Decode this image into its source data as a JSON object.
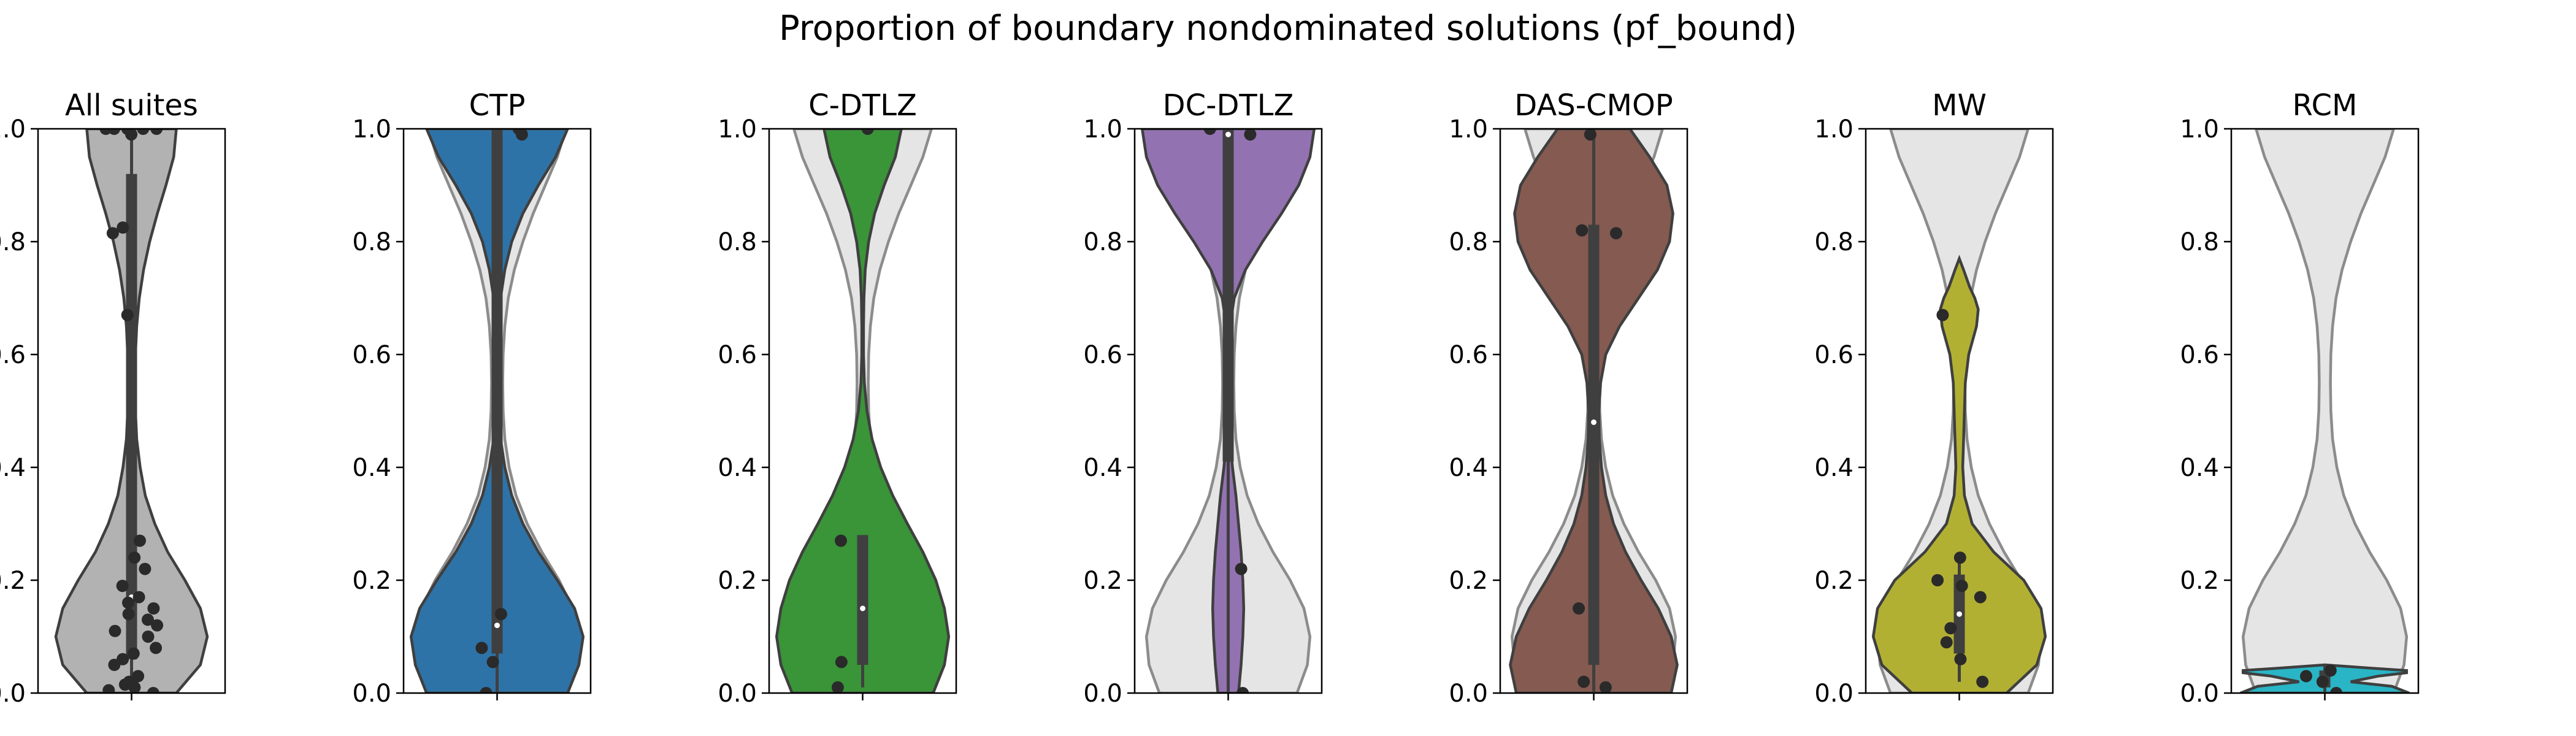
{
  "figure": {
    "title": "Proportion of boundary nondominated solutions (pf_bound)",
    "ylim": [
      0,
      1
    ],
    "yticks": [
      "0.0",
      "0.2",
      "0.4",
      "0.6",
      "0.8",
      "1.0"
    ],
    "background_violin_color": "#e5e5e5",
    "background_violin_edge": "#8c8c8c"
  },
  "chart_data": [
    {
      "type": "violin",
      "title": "All suites",
      "color": "#b2b2b2",
      "ylim": [
        0,
        1
      ],
      "density": [
        [
          0.0,
          0.52
        ],
        [
          0.05,
          0.8
        ],
        [
          0.1,
          0.88
        ],
        [
          0.15,
          0.8
        ],
        [
          0.2,
          0.62
        ],
        [
          0.25,
          0.42
        ],
        [
          0.3,
          0.27
        ],
        [
          0.35,
          0.16
        ],
        [
          0.4,
          0.1
        ],
        [
          0.45,
          0.06
        ],
        [
          0.5,
          0.045
        ],
        [
          0.55,
          0.04
        ],
        [
          0.6,
          0.045
        ],
        [
          0.65,
          0.06
        ],
        [
          0.7,
          0.09
        ],
        [
          0.75,
          0.14
        ],
        [
          0.8,
          0.21
        ],
        [
          0.85,
          0.3
        ],
        [
          0.9,
          0.4
        ],
        [
          0.95,
          0.49
        ],
        [
          1.0,
          0.52
        ]
      ],
      "box": {
        "q1": 0.06,
        "median": 0.17,
        "q3": 0.92,
        "whisker_low": 0.0,
        "whisker_high": 1.0
      },
      "points": [
        0.0,
        0.005,
        0.01,
        0.015,
        0.02,
        0.03,
        0.05,
        0.06,
        0.07,
        0.08,
        0.1,
        0.11,
        0.12,
        0.13,
        0.14,
        0.15,
        0.16,
        0.17,
        0.19,
        0.22,
        0.24,
        0.27,
        0.67,
        0.815,
        0.825,
        0.99,
        1.0,
        1.0,
        1.0,
        1.0,
        1.0
      ],
      "show_background": false
    },
    {
      "type": "violin",
      "title": "CTP",
      "color": "#2e73a7",
      "ylim": [
        0,
        1
      ],
      "density": [
        [
          0.0,
          0.82
        ],
        [
          0.05,
          0.95
        ],
        [
          0.1,
          1.0
        ],
        [
          0.15,
          0.9
        ],
        [
          0.2,
          0.7
        ],
        [
          0.25,
          0.48
        ],
        [
          0.3,
          0.3
        ],
        [
          0.35,
          0.17
        ],
        [
          0.4,
          0.09
        ],
        [
          0.45,
          0.04
        ],
        [
          0.5,
          0.02
        ],
        [
          0.55,
          0.015
        ],
        [
          0.6,
          0.015
        ],
        [
          0.65,
          0.02
        ],
        [
          0.7,
          0.04
        ],
        [
          0.75,
          0.09
        ],
        [
          0.8,
          0.17
        ],
        [
          0.85,
          0.3
        ],
        [
          0.9,
          0.48
        ],
        [
          0.95,
          0.68
        ],
        [
          1.0,
          0.82
        ]
      ],
      "box": {
        "q1": 0.07,
        "median": 0.12,
        "q3": 1.0,
        "whisker_low": 0.0,
        "whisker_high": 1.0
      },
      "points": [
        0.0,
        0.055,
        0.08,
        0.14,
        0.99,
        1.0
      ],
      "show_background": true
    },
    {
      "type": "violin",
      "title": "C-DTLZ",
      "color": "#3a9438",
      "ylim": [
        0,
        1
      ],
      "density": [
        [
          0.0,
          0.82
        ],
        [
          0.05,
          0.95
        ],
        [
          0.1,
          1.0
        ],
        [
          0.15,
          0.95
        ],
        [
          0.2,
          0.85
        ],
        [
          0.25,
          0.7
        ],
        [
          0.3,
          0.52
        ],
        [
          0.35,
          0.35
        ],
        [
          0.4,
          0.21
        ],
        [
          0.45,
          0.11
        ],
        [
          0.5,
          0.05
        ],
        [
          0.55,
          0.02
        ],
        [
          0.6,
          0.01
        ],
        [
          0.65,
          0.01
        ],
        [
          0.7,
          0.015
        ],
        [
          0.75,
          0.03
        ],
        [
          0.8,
          0.07
        ],
        [
          0.85,
          0.14
        ],
        [
          0.9,
          0.25
        ],
        [
          0.95,
          0.38
        ],
        [
          1.0,
          0.45
        ]
      ],
      "box": {
        "q1": 0.05,
        "median": 0.15,
        "q3": 0.28,
        "whisker_low": 0.01,
        "whisker_high": 0.28
      },
      "points": [
        0.01,
        0.055,
        0.27,
        1.0
      ],
      "show_background": true
    },
    {
      "type": "violin",
      "title": "DC-DTLZ",
      "color": "#9372b1",
      "ylim": [
        0,
        1
      ],
      "density": [
        [
          0.0,
          0.12
        ],
        [
          0.05,
          0.15
        ],
        [
          0.1,
          0.17
        ],
        [
          0.15,
          0.18
        ],
        [
          0.2,
          0.17
        ],
        [
          0.25,
          0.15
        ],
        [
          0.3,
          0.12
        ],
        [
          0.35,
          0.09
        ],
        [
          0.4,
          0.05
        ],
        [
          0.45,
          0.02
        ],
        [
          0.5,
          0.008
        ],
        [
          0.55,
          0.005
        ],
        [
          0.6,
          0.008
        ],
        [
          0.65,
          0.02
        ],
        [
          0.7,
          0.07
        ],
        [
          0.75,
          0.2
        ],
        [
          0.8,
          0.4
        ],
        [
          0.85,
          0.62
        ],
        [
          0.9,
          0.82
        ],
        [
          0.95,
          0.95
        ],
        [
          1.0,
          1.0
        ]
      ],
      "box": {
        "q1": 0.41,
        "median": 0.99,
        "q3": 1.0,
        "whisker_low": 0.0,
        "whisker_high": 1.0
      },
      "points": [
        0.0,
        0.22,
        0.99,
        1.0
      ],
      "show_background": true
    },
    {
      "type": "violin",
      "title": "DAS-CMOP",
      "color": "#845a51",
      "ylim": [
        0,
        1
      ],
      "density": [
        [
          0.0,
          0.9
        ],
        [
          0.05,
          0.97
        ],
        [
          0.1,
          0.9
        ],
        [
          0.15,
          0.75
        ],
        [
          0.2,
          0.55
        ],
        [
          0.25,
          0.37
        ],
        [
          0.3,
          0.23
        ],
        [
          0.35,
          0.14
        ],
        [
          0.4,
          0.09
        ],
        [
          0.45,
          0.065
        ],
        [
          0.5,
          0.06
        ],
        [
          0.55,
          0.08
        ],
        [
          0.6,
          0.14
        ],
        [
          0.65,
          0.3
        ],
        [
          0.7,
          0.52
        ],
        [
          0.75,
          0.74
        ],
        [
          0.8,
          0.88
        ],
        [
          0.85,
          0.92
        ],
        [
          0.9,
          0.85
        ],
        [
          0.95,
          0.65
        ],
        [
          1.0,
          0.42
        ]
      ],
      "box": {
        "q1": 0.05,
        "median": 0.48,
        "q3": 0.83,
        "whisker_low": 0.0,
        "whisker_high": 1.0
      },
      "points": [
        0.01,
        0.02,
        0.15,
        0.815,
        0.82,
        0.99
      ],
      "show_background": true
    },
    {
      "type": "violin",
      "title": "MW",
      "color": "#b2b033",
      "ylim": [
        0,
        1
      ],
      "density": [
        [
          0.0,
          0.55
        ],
        [
          0.05,
          0.9
        ],
        [
          0.1,
          1.0
        ],
        [
          0.15,
          0.95
        ],
        [
          0.2,
          0.75
        ],
        [
          0.25,
          0.4
        ],
        [
          0.3,
          0.15
        ],
        [
          0.35,
          0.06
        ],
        [
          0.4,
          0.04
        ],
        [
          0.45,
          0.05
        ],
        [
          0.5,
          0.06
        ],
        [
          0.55,
          0.07
        ],
        [
          0.6,
          0.11
        ],
        [
          0.65,
          0.2
        ],
        [
          0.68,
          0.22
        ],
        [
          0.7,
          0.18
        ],
        [
          0.72,
          0.12
        ],
        [
          0.75,
          0.05
        ],
        [
          0.77,
          0.0
        ]
      ],
      "box": {
        "q1": 0.07,
        "median": 0.14,
        "q3": 0.21,
        "whisker_low": 0.02,
        "whisker_high": 0.24
      },
      "points": [
        0.02,
        0.06,
        0.09,
        0.115,
        0.17,
        0.19,
        0.2,
        0.24,
        0.67
      ],
      "show_background": true
    },
    {
      "type": "violin",
      "title": "RCM",
      "color": "#29b5c5",
      "ylim": [
        0,
        1
      ],
      "density": [
        [
          0.0,
          0.98
        ],
        [
          0.012,
          0.78
        ],
        [
          0.02,
          0.3
        ],
        [
          0.03,
          0.62
        ],
        [
          0.036,
          0.95
        ],
        [
          0.04,
          0.95
        ],
        [
          0.044,
          0.55
        ],
        [
          0.05,
          0.0
        ]
      ],
      "box": {
        "q1": 0.01,
        "median": 0.02,
        "q3": 0.04,
        "whisker_low": 0.0,
        "whisker_high": 0.05
      },
      "points": [
        0.0,
        0.02,
        0.03,
        0.04
      ],
      "show_background": true
    }
  ],
  "background_density": [
    [
      0.0,
      0.8
    ],
    [
      0.05,
      0.92
    ],
    [
      0.1,
      0.95
    ],
    [
      0.15,
      0.88
    ],
    [
      0.2,
      0.72
    ],
    [
      0.25,
      0.52
    ],
    [
      0.3,
      0.35
    ],
    [
      0.35,
      0.22
    ],
    [
      0.4,
      0.14
    ],
    [
      0.45,
      0.09
    ],
    [
      0.5,
      0.07
    ],
    [
      0.55,
      0.065
    ],
    [
      0.6,
      0.07
    ],
    [
      0.65,
      0.09
    ],
    [
      0.7,
      0.13
    ],
    [
      0.75,
      0.2
    ],
    [
      0.8,
      0.3
    ],
    [
      0.85,
      0.42
    ],
    [
      0.9,
      0.56
    ],
    [
      0.95,
      0.7
    ],
    [
      1.0,
      0.8
    ]
  ]
}
